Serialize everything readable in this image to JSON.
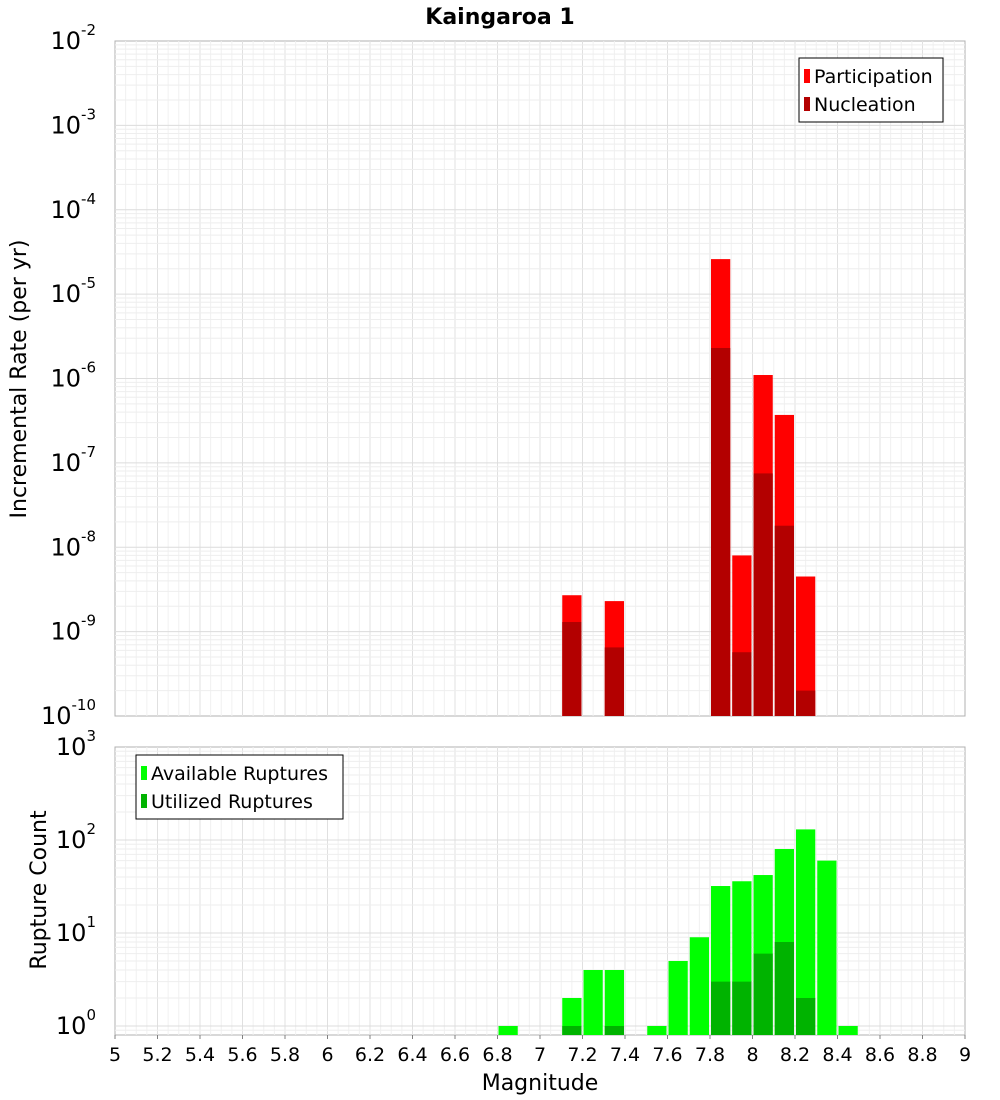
{
  "chart_data": [
    {
      "type": "bar",
      "title": "Kaingaroa 1",
      "ylabel": "Incremental Rate (per yr)",
      "xlabel": "",
      "y_scale": "log",
      "ylim": [
        1e-10,
        0.01
      ],
      "xlim": [
        5,
        9
      ],
      "y_ticks": [
        {
          "m": "10",
          "e": "-10"
        },
        {
          "m": "10",
          "e": "-9"
        },
        {
          "m": "10",
          "e": "-8"
        },
        {
          "m": "10",
          "e": "-7"
        },
        {
          "m": "10",
          "e": "-6"
        },
        {
          "m": "10",
          "e": "-5"
        },
        {
          "m": "10",
          "e": "-4"
        },
        {
          "m": "10",
          "e": "-3"
        },
        {
          "m": "10",
          "e": "-2"
        }
      ],
      "legend": {
        "position": "top-right",
        "entries": [
          {
            "label": "Participation",
            "color": "#ff0000"
          },
          {
            "label": "Nucleation",
            "color": "#b30000"
          }
        ]
      },
      "bin_width": 0.1,
      "series": [
        {
          "name": "Participation",
          "color": "#ff0000",
          "points": [
            {
              "x": 7.15,
              "y": 2.7e-09
            },
            {
              "x": 7.35,
              "y": 2.3e-09
            },
            {
              "x": 7.85,
              "y": 2.6e-05
            },
            {
              "x": 7.95,
              "y": 8e-09
            },
            {
              "x": 8.05,
              "y": 1.1e-06
            },
            {
              "x": 8.15,
              "y": 3.7e-07
            },
            {
              "x": 8.25,
              "y": 4.5e-09
            }
          ]
        },
        {
          "name": "Nucleation",
          "color": "#b30000",
          "points": [
            {
              "x": 7.15,
              "y": 1.3e-09
            },
            {
              "x": 7.35,
              "y": 6.5e-10
            },
            {
              "x": 7.85,
              "y": 2.3e-06
            },
            {
              "x": 7.95,
              "y": 5.7e-10
            },
            {
              "x": 8.05,
              "y": 7.5e-08
            },
            {
              "x": 8.15,
              "y": 1.8e-08
            },
            {
              "x": 8.25,
              "y": 2e-10
            }
          ]
        }
      ]
    },
    {
      "type": "bar",
      "title": "",
      "ylabel": "Rupture Count",
      "xlabel": "Magnitude",
      "y_scale": "log",
      "ylim": [
        0.8,
        1000
      ],
      "xlim": [
        5,
        9
      ],
      "x_ticks": [
        "5",
        "5.2",
        "5.4",
        "5.6",
        "5.8",
        "6",
        "6.2",
        "6.4",
        "6.6",
        "6.8",
        "7",
        "7.2",
        "7.4",
        "7.6",
        "7.8",
        "8",
        "8.2",
        "8.4",
        "8.6",
        "8.8",
        "9"
      ],
      "y_ticks": [
        {
          "m": "10",
          "e": "0"
        },
        {
          "m": "10",
          "e": "1"
        },
        {
          "m": "10",
          "e": "2"
        },
        {
          "m": "10",
          "e": "3"
        }
      ],
      "legend": {
        "position": "top-left",
        "entries": [
          {
            "label": "Available Ruptures",
            "color": "#00ff00"
          },
          {
            "label": "Utilized Ruptures",
            "color": "#00b300"
          }
        ]
      },
      "bin_width": 0.1,
      "series": [
        {
          "name": "Available Ruptures",
          "color": "#00ff00",
          "points": [
            {
              "x": 6.85,
              "y": 1
            },
            {
              "x": 7.15,
              "y": 2
            },
            {
              "x": 7.25,
              "y": 4
            },
            {
              "x": 7.35,
              "y": 4
            },
            {
              "x": 7.55,
              "y": 1
            },
            {
              "x": 7.65,
              "y": 5
            },
            {
              "x": 7.75,
              "y": 9
            },
            {
              "x": 7.85,
              "y": 32
            },
            {
              "x": 7.95,
              "y": 36
            },
            {
              "x": 8.05,
              "y": 42
            },
            {
              "x": 8.15,
              "y": 80
            },
            {
              "x": 8.25,
              "y": 130
            },
            {
              "x": 8.35,
              "y": 60
            },
            {
              "x": 8.45,
              "y": 1
            }
          ]
        },
        {
          "name": "Utilized Ruptures",
          "color": "#00b300",
          "points": [
            {
              "x": 7.15,
              "y": 1
            },
            {
              "x": 7.35,
              "y": 1
            },
            {
              "x": 7.85,
              "y": 3
            },
            {
              "x": 7.95,
              "y": 3
            },
            {
              "x": 8.05,
              "y": 6
            },
            {
              "x": 8.15,
              "y": 8
            },
            {
              "x": 8.25,
              "y": 2
            }
          ]
        }
      ]
    }
  ]
}
